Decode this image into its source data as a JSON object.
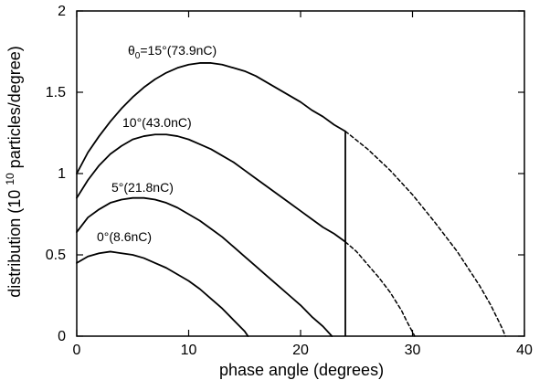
{
  "chart_data": {
    "type": "line",
    "xlabel": "phase angle (degrees)",
    "ylabel_prefix": "distribution (10",
    "ylabel_exponent": "10",
    "ylabel_suffix": " particles/degree)",
    "xlim": [
      0,
      40
    ],
    "ylim": [
      0,
      2
    ],
    "x_ticks": [
      0,
      10,
      20,
      30,
      40
    ],
    "y_ticks": [
      0,
      0.5,
      1,
      1.5,
      2
    ],
    "x_tick_labels": [
      "0",
      "10",
      "20",
      "30",
      "40"
    ],
    "y_tick_labels": [
      "0",
      "0.5",
      "1",
      "1.5",
      "2"
    ],
    "grid": false,
    "line_color": "#000000",
    "cutoff_line": {
      "x": 24,
      "y_top": 1.26
    },
    "series": [
      {
        "label_prefix": "θ",
        "label_subscript": "0",
        "label_suffix": "=15°(73.9nC)",
        "solid": [
          [
            0,
            1.0
          ],
          [
            1,
            1.13
          ],
          [
            2,
            1.23
          ],
          [
            3,
            1.32
          ],
          [
            4,
            1.4
          ],
          [
            5,
            1.47
          ],
          [
            6,
            1.53
          ],
          [
            7,
            1.58
          ],
          [
            8,
            1.62
          ],
          [
            9,
            1.65
          ],
          [
            10,
            1.67
          ],
          [
            11,
            1.68
          ],
          [
            12,
            1.68
          ],
          [
            13,
            1.67
          ],
          [
            14,
            1.65
          ],
          [
            15,
            1.63
          ],
          [
            16,
            1.6
          ],
          [
            17,
            1.56
          ],
          [
            18,
            1.52
          ],
          [
            19,
            1.48
          ],
          [
            20,
            1.44
          ],
          [
            21,
            1.39
          ],
          [
            22,
            1.35
          ],
          [
            23,
            1.3
          ],
          [
            24,
            1.26
          ]
        ],
        "dashed": [
          [
            24,
            1.26
          ],
          [
            26,
            1.15
          ],
          [
            28,
            1.02
          ],
          [
            30,
            0.87
          ],
          [
            32,
            0.7
          ],
          [
            34,
            0.52
          ],
          [
            36,
            0.31
          ],
          [
            37,
            0.19
          ],
          [
            38,
            0.05
          ],
          [
            38.3,
            0.0
          ]
        ]
      },
      {
        "label": "10°(43.0nC)",
        "solid": [
          [
            0,
            0.85
          ],
          [
            1,
            0.96
          ],
          [
            2,
            1.05
          ],
          [
            3,
            1.12
          ],
          [
            4,
            1.17
          ],
          [
            5,
            1.21
          ],
          [
            6,
            1.23
          ],
          [
            7,
            1.24
          ],
          [
            8,
            1.24
          ],
          [
            9,
            1.23
          ],
          [
            10,
            1.21
          ],
          [
            11,
            1.18
          ],
          [
            12,
            1.15
          ],
          [
            13,
            1.11
          ],
          [
            14,
            1.07
          ],
          [
            15,
            1.02
          ],
          [
            16,
            0.97
          ],
          [
            17,
            0.92
          ],
          [
            18,
            0.87
          ],
          [
            19,
            0.82
          ],
          [
            20,
            0.77
          ],
          [
            21,
            0.72
          ],
          [
            22,
            0.67
          ],
          [
            23,
            0.63
          ],
          [
            24,
            0.58
          ]
        ],
        "dashed": [
          [
            24,
            0.58
          ],
          [
            25,
            0.52
          ],
          [
            26,
            0.44
          ],
          [
            27,
            0.36
          ],
          [
            28,
            0.27
          ],
          [
            29,
            0.16
          ],
          [
            29.5,
            0.09
          ],
          [
            30.2,
            0.0
          ]
        ]
      },
      {
        "label": "5°(21.8nC)",
        "solid": [
          [
            0,
            0.64
          ],
          [
            1,
            0.73
          ],
          [
            2,
            0.78
          ],
          [
            3,
            0.82
          ],
          [
            4,
            0.84
          ],
          [
            5,
            0.85
          ],
          [
            6,
            0.85
          ],
          [
            7,
            0.84
          ],
          [
            8,
            0.82
          ],
          [
            9,
            0.79
          ],
          [
            10,
            0.75
          ],
          [
            11,
            0.71
          ],
          [
            12,
            0.66
          ],
          [
            13,
            0.61
          ],
          [
            14,
            0.55
          ],
          [
            15,
            0.49
          ],
          [
            16,
            0.43
          ],
          [
            17,
            0.37
          ],
          [
            18,
            0.31
          ],
          [
            19,
            0.25
          ],
          [
            20,
            0.19
          ],
          [
            21,
            0.12
          ],
          [
            22,
            0.06
          ],
          [
            22.8,
            0.0
          ]
        ],
        "dashed": []
      },
      {
        "label": "0°(8.6nC)",
        "solid": [
          [
            0,
            0.45
          ],
          [
            1,
            0.49
          ],
          [
            2,
            0.51
          ],
          [
            3,
            0.52
          ],
          [
            4,
            0.51
          ],
          [
            5,
            0.5
          ],
          [
            6,
            0.48
          ],
          [
            7,
            0.45
          ],
          [
            8,
            0.42
          ],
          [
            9,
            0.38
          ],
          [
            10,
            0.34
          ],
          [
            11,
            0.29
          ],
          [
            12,
            0.23
          ],
          [
            13,
            0.17
          ],
          [
            14,
            0.1
          ],
          [
            15,
            0.03
          ],
          [
            15.3,
            0.0
          ]
        ],
        "dashed": []
      }
    ]
  }
}
